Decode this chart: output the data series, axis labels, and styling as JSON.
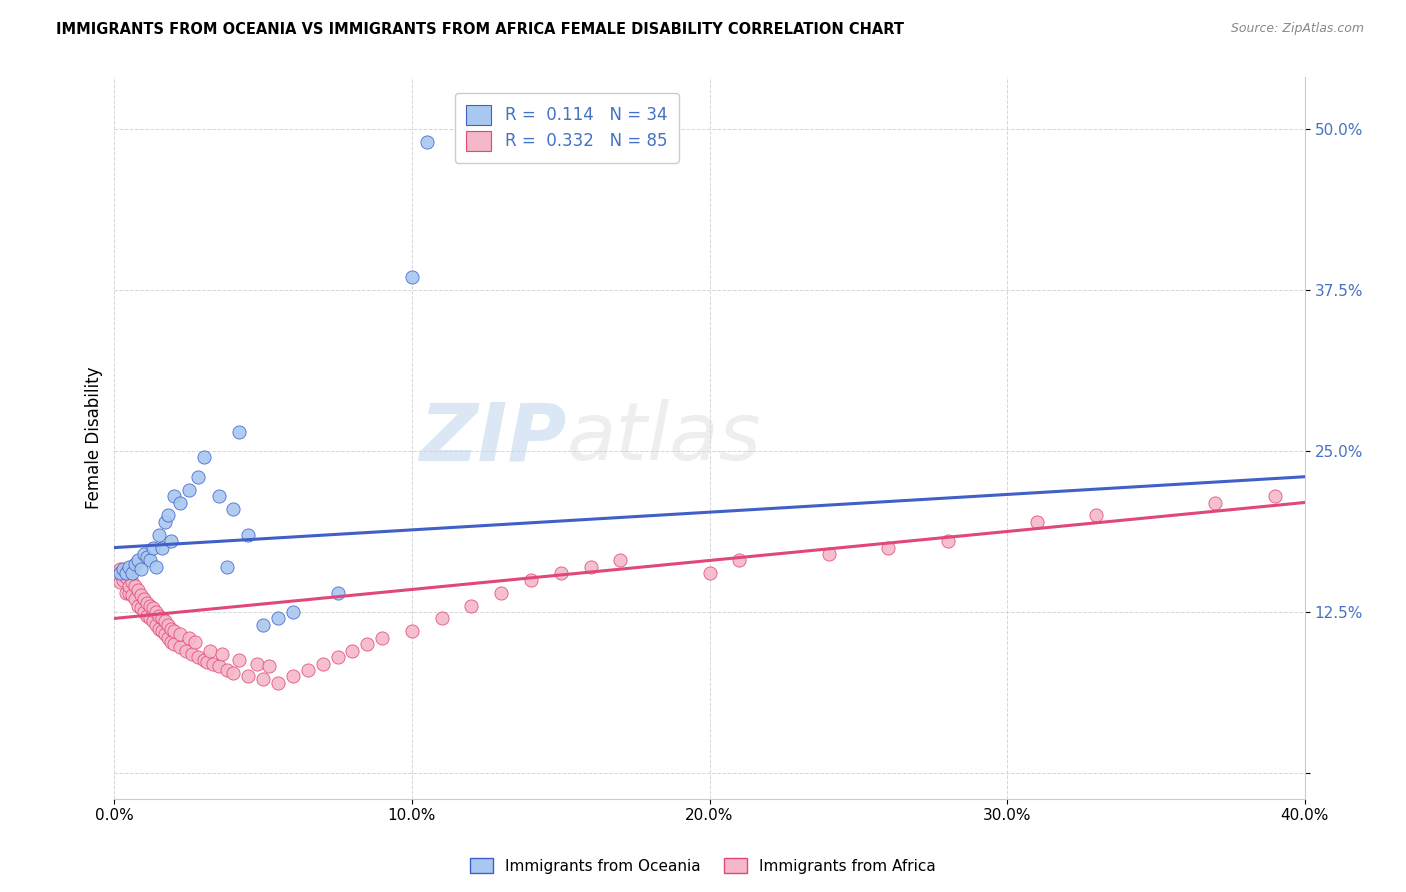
{
  "title": "IMMIGRANTS FROM OCEANIA VS IMMIGRANTS FROM AFRICA FEMALE DISABILITY CORRELATION CHART",
  "source": "Source: ZipAtlas.com",
  "ylabel": "Female Disability",
  "yticks": [
    0.0,
    0.125,
    0.25,
    0.375,
    0.5
  ],
  "ytick_labels": [
    "",
    "12.5%",
    "25.0%",
    "37.5%",
    "50.0%"
  ],
  "xlim": [
    0.0,
    0.4
  ],
  "ylim": [
    -0.02,
    0.54
  ],
  "watermark_zip": "ZIP",
  "watermark_atlas": "atlas",
  "legend_r1": "R =  0.114",
  "legend_n1": "N = 34",
  "legend_r2": "R =  0.332",
  "legend_n2": "N = 85",
  "color_oceania_fill": "#a8c8f0",
  "color_africa_fill": "#f4b8c8",
  "color_blue_line": "#4060c8",
  "color_pink_line": "#e04878",
  "color_text_blue": "#4472c4",
  "color_text_pink": "#e05080",
  "oceania_x": [
    0.002,
    0.003,
    0.004,
    0.005,
    0.006,
    0.007,
    0.008,
    0.009,
    0.01,
    0.011,
    0.012,
    0.013,
    0.014,
    0.015,
    0.016,
    0.017,
    0.018,
    0.019,
    0.02,
    0.022,
    0.025,
    0.028,
    0.03,
    0.035,
    0.038,
    0.04,
    0.042,
    0.045,
    0.05,
    0.055,
    0.06,
    0.075,
    0.1,
    0.105
  ],
  "oceania_y": [
    0.155,
    0.158,
    0.155,
    0.16,
    0.155,
    0.162,
    0.165,
    0.158,
    0.17,
    0.168,
    0.165,
    0.175,
    0.16,
    0.185,
    0.175,
    0.195,
    0.2,
    0.18,
    0.215,
    0.21,
    0.22,
    0.23,
    0.245,
    0.215,
    0.16,
    0.205,
    0.265,
    0.185,
    0.115,
    0.12,
    0.125,
    0.14,
    0.385,
    0.49
  ],
  "africa_x": [
    0.001,
    0.002,
    0.002,
    0.003,
    0.003,
    0.004,
    0.004,
    0.005,
    0.005,
    0.005,
    0.006,
    0.006,
    0.007,
    0.007,
    0.008,
    0.008,
    0.009,
    0.009,
    0.01,
    0.01,
    0.011,
    0.011,
    0.012,
    0.012,
    0.013,
    0.013,
    0.014,
    0.014,
    0.015,
    0.015,
    0.016,
    0.016,
    0.017,
    0.017,
    0.018,
    0.018,
    0.019,
    0.019,
    0.02,
    0.02,
    0.022,
    0.022,
    0.024,
    0.025,
    0.026,
    0.027,
    0.028,
    0.03,
    0.031,
    0.032,
    0.033,
    0.035,
    0.036,
    0.038,
    0.04,
    0.042,
    0.045,
    0.048,
    0.05,
    0.052,
    0.055,
    0.06,
    0.065,
    0.07,
    0.075,
    0.08,
    0.085,
    0.09,
    0.1,
    0.11,
    0.12,
    0.13,
    0.14,
    0.15,
    0.16,
    0.17,
    0.2,
    0.21,
    0.24,
    0.26,
    0.28,
    0.31,
    0.33,
    0.37,
    0.39
  ],
  "africa_y": [
    0.155,
    0.148,
    0.158,
    0.15,
    0.155,
    0.14,
    0.152,
    0.14,
    0.145,
    0.155,
    0.138,
    0.148,
    0.135,
    0.145,
    0.13,
    0.142,
    0.128,
    0.138,
    0.125,
    0.135,
    0.122,
    0.132,
    0.12,
    0.13,
    0.118,
    0.128,
    0.115,
    0.125,
    0.112,
    0.122,
    0.11,
    0.12,
    0.108,
    0.118,
    0.105,
    0.115,
    0.102,
    0.112,
    0.1,
    0.11,
    0.098,
    0.108,
    0.095,
    0.105,
    0.092,
    0.102,
    0.09,
    0.088,
    0.086,
    0.095,
    0.085,
    0.083,
    0.092,
    0.08,
    0.078,
    0.088,
    0.075,
    0.085,
    0.073,
    0.083,
    0.07,
    0.075,
    0.08,
    0.085,
    0.09,
    0.095,
    0.1,
    0.105,
    0.11,
    0.12,
    0.13,
    0.14,
    0.15,
    0.155,
    0.16,
    0.165,
    0.155,
    0.165,
    0.17,
    0.175,
    0.18,
    0.195,
    0.2,
    0.21,
    0.215
  ]
}
